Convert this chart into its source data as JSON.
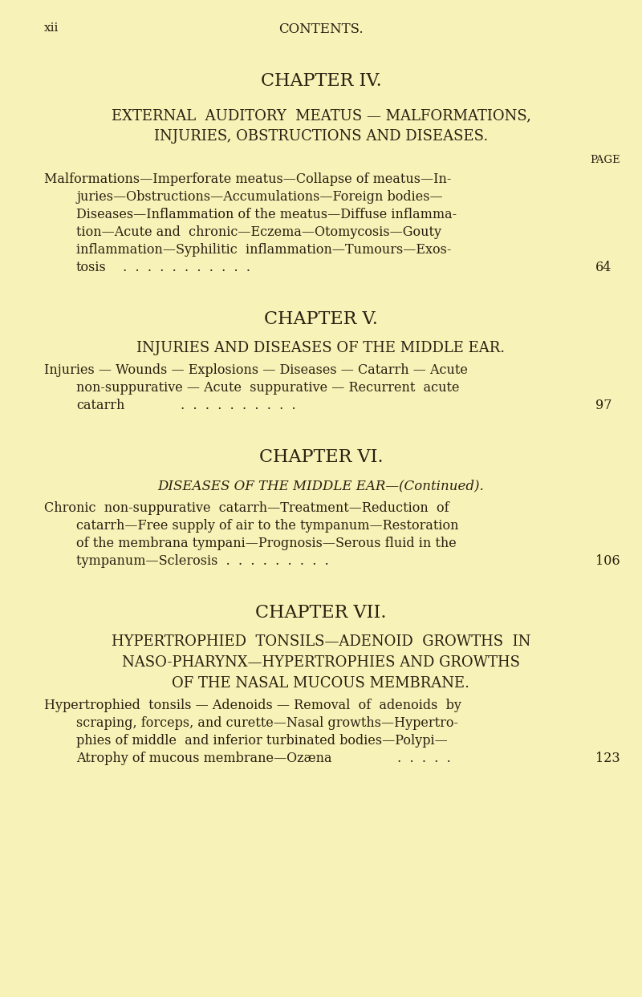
{
  "background_color": "#f7f2b8",
  "text_color": "#2a2010",
  "page_width": 8.0,
  "page_height": 12.43,
  "dpi": 100,
  "header_left": "xii",
  "header_center": "CONTENTS.",
  "chapter4_title": "CHAPTER IV.",
  "chapter4_subtitle_line1": "EXTERNAL  AUDITORY  MEATUS — MALFORMATIONS,",
  "chapter4_subtitle_line2": "INJURIES, OBSTRUCTIONS AND DISEASES.",
  "chapter4_page_label": "PAGE",
  "chapter4_body_line1": "Malformations—Imperforate meatus—Collapse of meatus—In-",
  "chapter4_body_line2": "juries—Obstructions—Accumulations—Foreign bodies—",
  "chapter4_body_line3": "Diseases—Inflammation of the meatus—Diffuse inflamma-",
  "chapter4_body_line4": "tion—Acute and  chronic—Eczema—Otomycosis—Gouty",
  "chapter4_body_line5": "inflammation—Syphilitic  inflammation—Tumours—Exos-",
  "chapter4_body_line6": "tosis",
  "chapter4_dots": " .  .  .  .  .  .  .  .  .  .  .",
  "chapter4_page_num": "64",
  "chapter5_title": "CHAPTER V.",
  "chapter5_subtitle": "INJURIES AND DISEASES OF THE MIDDLE EAR.",
  "chapter5_body_line1": "Injuries — Wounds — Explosions — Diseases — Catarrh — Acute",
  "chapter5_body_line2": "non-suppurative — Acute  suppurative — Recurrent  acute",
  "chapter5_body_line3": "catarrh",
  "chapter5_dots": " .  .  .  .  .  .  .  .  .  .",
  "chapter5_page_num": "97",
  "chapter6_title": "CHAPTER VI.",
  "chapter6_subtitle": "DISEASES OF THE MIDDLE EAR—(Continued).",
  "chapter6_body_line1": "Chronic  non-suppurative  catarrh—Treatment—Reduction  of",
  "chapter6_body_line2": "catarrh—Free supply of air to the tympanum—Restoration",
  "chapter6_body_line3": "of the membrana tympani—Prognosis—Serous fluid in the",
  "chapter6_body_line4": "tympanum—Sclerosis  .  .  .  .  .  .  .  .  .",
  "chapter6_page_num": "106",
  "chapter7_title": "CHAPTER VII.",
  "chapter7_subtitle_line1": "HYPERTROPHIED  TONSILS—ADENOID  GROWTHS  IN",
  "chapter7_subtitle_line2": "NASO-PHARYNX—HYPERTROPHIES AND GROWTHS",
  "chapter7_subtitle_line3": "OF THE NASAL MUCOUS MEMBRANE.",
  "chapter7_body_line1": "Hypertrophied  tonsils — Adenoids — Removal  of  adenoids  by",
  "chapter7_body_line2": "scraping, forceps, and curette—Nasal growths—Hypertro-",
  "chapter7_body_line3": "phies of middle  and inferior turbinated bodies—Polypi—",
  "chapter7_body_line4": "Atrophy of mucous membrane—Ozæna",
  "chapter7_dots": " .  .  .  .  .",
  "chapter7_page_num": "123"
}
